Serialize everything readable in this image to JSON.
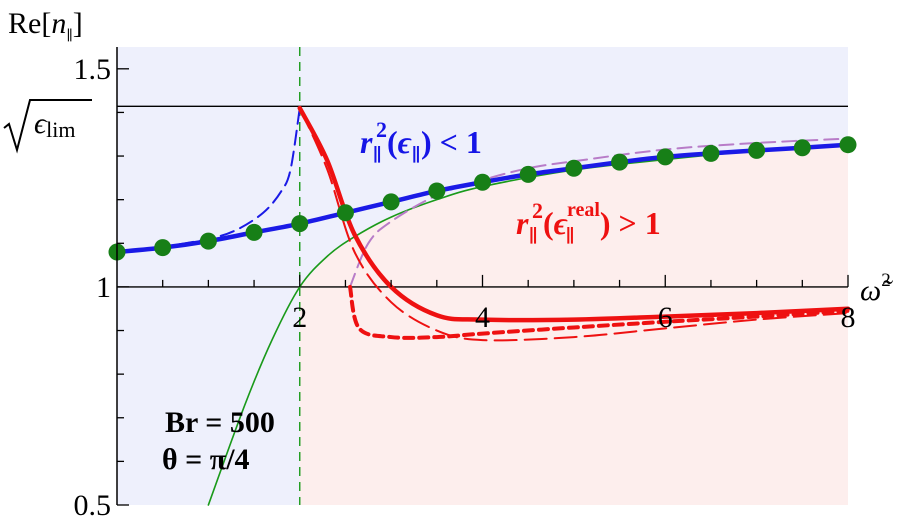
{
  "chart_data": {
    "type": "line",
    "title": "",
    "ylabel": {
      "pre": "Re[",
      "var": "n",
      "sub": "∥",
      "post": "]"
    },
    "xlabel": {
      "var": "ω̃",
      "sup": "2"
    },
    "xlim": [
      0,
      8
    ],
    "ylim": [
      0.5,
      1.55
    ],
    "x_ticks": [
      {
        "v": 2,
        "label": "2"
      },
      {
        "v": 4,
        "label": "4"
      },
      {
        "v": 6,
        "label": "6"
      },
      {
        "v": 8,
        "label": "8"
      }
    ],
    "y_ticks": [
      {
        "v": 0.5,
        "label": "0.5"
      },
      {
        "v": 1.0,
        "label": "1"
      },
      {
        "v": 1.5,
        "label": "1.5"
      }
    ],
    "sqrt_label": {
      "base": "ϵ",
      "sub": "lim",
      "value": 1.414
    },
    "parameters": {
      "line1": "Br = 500",
      "line2": "θ = π/4"
    },
    "vertical_marker": 2,
    "regions": [
      {
        "name": "r∥²(ϵ∥) < 1",
        "color": "#eef0fc"
      },
      {
        "name": "r∥²(ϵ∥ʳᵉᵃˡ) > 1",
        "color": "#fdeeed"
      }
    ],
    "annotations": [
      {
        "base": "r",
        "sub": "∥",
        "sup": "2",
        "arg": "ϵ",
        "arg_sub": "∥",
        "arg_sup": "",
        "rel": " < 1",
        "color": "#1515e6"
      },
      {
        "base": "r",
        "sub": "∥",
        "sup": "2",
        "arg": "ϵ",
        "arg_sub": "∥",
        "arg_sup": "real",
        "rel": " > 1",
        "color": "#ee1111"
      }
    ],
    "series": [
      {
        "key": "blue_solid",
        "color": "#1a1ae6",
        "style": "solid",
        "x": [
          0.0,
          0.5,
          1.0,
          1.5,
          2.0,
          2.5,
          3.0,
          3.5,
          4.0,
          4.5,
          5.0,
          5.5,
          6.0,
          6.5,
          7.0,
          7.5,
          8.0
        ],
        "y": [
          1.08,
          1.09,
          1.105,
          1.125,
          1.145,
          1.17,
          1.195,
          1.22,
          1.24,
          1.258,
          1.272,
          1.286,
          1.298,
          1.306,
          1.313,
          1.319,
          1.326
        ]
      },
      {
        "key": "blue_dashed",
        "color": "#1a1ae6",
        "style": "dashed",
        "x": [
          0.0,
          0.5,
          1.0,
          1.3,
          1.6,
          1.8,
          1.9,
          2.0
        ],
        "y": [
          1.08,
          1.092,
          1.11,
          1.13,
          1.17,
          1.22,
          1.27,
          1.41
        ]
      },
      {
        "key": "red_solid",
        "color": "#ee1111",
        "style": "solid",
        "x": [
          2.0,
          2.3,
          2.6,
          3.0,
          3.5,
          4.0,
          5.0,
          6.0,
          7.0,
          8.0
        ],
        "y": [
          1.41,
          1.29,
          1.12,
          1.0,
          0.935,
          0.925,
          0.925,
          0.932,
          0.94,
          0.95
        ]
      },
      {
        "key": "red_short_dashed",
        "color": "#ee1111",
        "style": "short-dashed",
        "x": [
          2.55,
          2.65,
          3.0,
          3.5,
          4.0,
          5.0,
          6.0,
          7.0,
          8.0
        ],
        "y": [
          1.0,
          0.905,
          0.885,
          0.885,
          0.893,
          0.907,
          0.92,
          0.932,
          0.945
        ]
      },
      {
        "key": "red_long_dashed",
        "color": "#ee1111",
        "style": "long-dashed",
        "x": [
          2.0,
          2.3,
          2.6,
          3.0,
          3.5,
          4.0,
          5.0,
          6.0,
          7.0,
          8.0
        ],
        "y": [
          1.41,
          1.27,
          1.08,
          0.965,
          0.9,
          0.878,
          0.885,
          0.905,
          0.925,
          0.94
        ]
      },
      {
        "key": "purple_dashed",
        "color": "#b87cc8",
        "style": "dashed",
        "x": [
          2.55,
          2.75,
          3.0,
          3.5,
          4.0,
          4.5,
          5.0,
          6.0,
          7.0,
          8.0
        ],
        "y": [
          1.0,
          1.1,
          1.15,
          1.21,
          1.245,
          1.272,
          1.288,
          1.315,
          1.33,
          1.34
        ]
      },
      {
        "key": "green_thin",
        "color": "#1a9a1a",
        "style": "thin",
        "x": [
          1.0,
          1.4,
          1.7,
          2.0,
          2.3,
          2.6,
          3.0,
          3.5,
          4.0,
          5.0,
          6.0,
          7.0,
          8.0
        ],
        "y": [
          0.5,
          0.73,
          0.88,
          1.0,
          1.07,
          1.115,
          1.16,
          1.2,
          1.23,
          1.268,
          1.292,
          1.312,
          1.326
        ]
      },
      {
        "key": "green_dots",
        "color": "#177f17",
        "style": "markers",
        "x": [
          0.0,
          0.5,
          1.0,
          1.5,
          2.0,
          2.5,
          3.0,
          3.5,
          4.0,
          4.5,
          5.0,
          5.5,
          6.0,
          6.5,
          7.0,
          7.5,
          8.0
        ],
        "y": [
          1.08,
          1.09,
          1.105,
          1.125,
          1.145,
          1.17,
          1.195,
          1.22,
          1.24,
          1.258,
          1.272,
          1.286,
          1.298,
          1.306,
          1.313,
          1.319,
          1.326
        ]
      }
    ]
  }
}
